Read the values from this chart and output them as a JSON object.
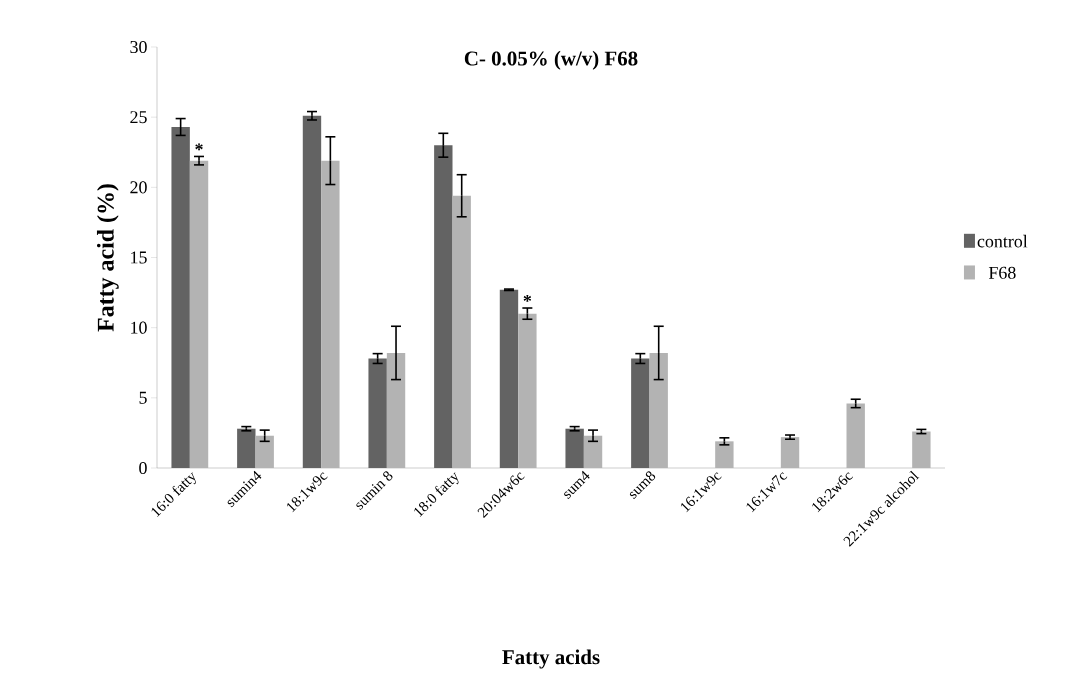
{
  "chart_data": {
    "type": "bar",
    "title": "C- 0.05% (w/v) F68",
    "xlabel": "Fatty acids",
    "ylabel": "Fatty acid (%)",
    "categories": [
      "16:0 fatty",
      "sumin4",
      "18:1w9c",
      "sumin 8",
      "18:0 fatty",
      "20:04w6c",
      "sum4",
      "sum8",
      "16:1w9c",
      "16:1w7c",
      "18:2w6c",
      "22:1w9c alcohol"
    ],
    "series": [
      {
        "name": "control",
        "color": "#636363",
        "values": [
          24.3,
          2.8,
          25.1,
          7.8,
          23.0,
          12.7,
          2.8,
          7.8,
          null,
          null,
          null,
          null
        ],
        "errors": [
          0.6,
          0.15,
          0.3,
          0.35,
          0.85,
          0.05,
          0.15,
          0.35,
          null,
          null,
          null,
          null
        ]
      },
      {
        "name": "F68",
        "color": "#b3b3b3",
        "values": [
          21.9,
          2.3,
          21.9,
          8.2,
          19.4,
          11.0,
          2.3,
          8.2,
          1.9,
          2.2,
          4.6,
          2.6
        ],
        "errors": [
          0.3,
          0.4,
          1.7,
          1.9,
          1.5,
          0.4,
          0.4,
          1.9,
          0.25,
          0.15,
          0.3,
          0.15
        ]
      }
    ],
    "annotations": [
      {
        "text": "*",
        "x": "16:0 fatty",
        "y": 22.2
      },
      {
        "text": "*",
        "x": "20:04w6c",
        "y": 11.4
      }
    ],
    "ylim": [
      0,
      30
    ],
    "yticks": [
      0,
      5,
      10,
      15,
      20,
      25,
      30
    ],
    "grid": false,
    "legend": "right"
  }
}
